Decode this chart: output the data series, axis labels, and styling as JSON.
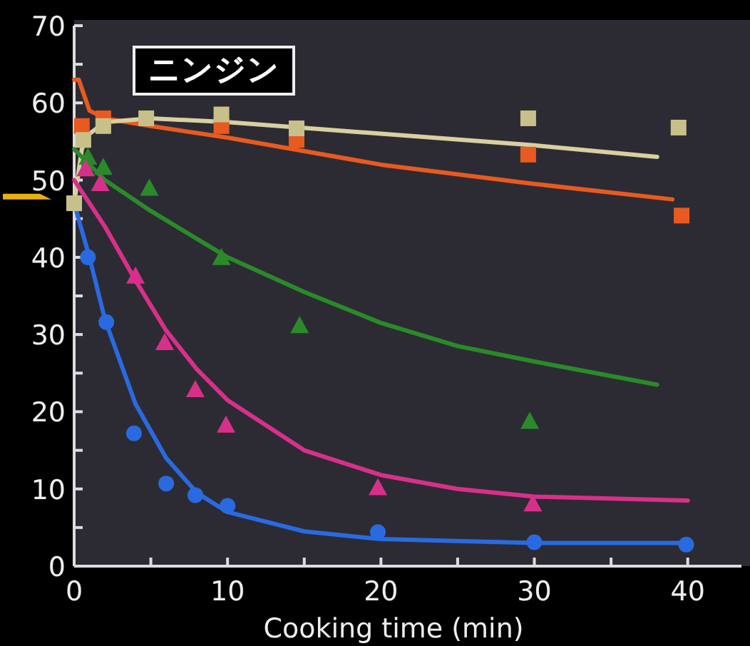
{
  "chart_data": {
    "type": "scatter",
    "title": "ニンジン",
    "xlabel": "Cooking time (min)",
    "xlim": [
      0,
      43.5
    ],
    "ylim": [
      0,
      70
    ],
    "xticks": [
      0,
      {
        "value": 5,
        "label": null
      },
      10,
      {
        "value": 15,
        "label": null
      },
      20,
      {
        "value": 25,
        "label": null
      },
      30,
      {
        "value": 35,
        "label": null
      },
      40
    ],
    "yticks": [
      0,
      {
        "value": 5,
        "label": null
      },
      10,
      {
        "value": 15,
        "label": null
      },
      20,
      {
        "value": 25,
        "label": null
      },
      30,
      {
        "value": 35,
        "label": null
      },
      40,
      {
        "value": 45,
        "label": null
      },
      50,
      {
        "value": 55,
        "label": null
      },
      60,
      {
        "value": 65,
        "label": null
      },
      70
    ],
    "grid": false,
    "series": [
      {
        "type": "line",
        "color": "#e85a20",
        "marker": "none",
        "x": [
          0,
          0.3,
          1,
          2,
          5,
          10,
          20,
          30,
          39
        ],
        "values": [
          63,
          63,
          59,
          58,
          57,
          55.5,
          52,
          49.5,
          47.5
        ]
      },
      {
        "type": "line",
        "color": "#d8d0a0",
        "marker": "none",
        "x": [
          0,
          0.5,
          1,
          2,
          5,
          10,
          20,
          30,
          38
        ],
        "values": [
          47,
          54,
          56,
          57.5,
          58,
          57.5,
          56,
          54.5,
          53
        ]
      },
      {
        "type": "line",
        "color": "#2a8a2a",
        "marker": "none",
        "x": [
          0,
          2,
          5,
          10,
          15,
          20,
          25,
          30,
          38
        ],
        "values": [
          54,
          50,
          46,
          40,
          35.5,
          31.5,
          28.5,
          26.5,
          23.5
        ]
      },
      {
        "type": "line",
        "color": "#d8308a",
        "marker": "none",
        "x": [
          0,
          2,
          4,
          6,
          8,
          10,
          15,
          20,
          25,
          30,
          40
        ],
        "values": [
          50,
          44,
          37,
          30.5,
          25.5,
          21.5,
          15,
          11.8,
          10,
          9,
          8.5
        ]
      },
      {
        "type": "line",
        "color": "#2a6ae0",
        "marker": "none",
        "x": [
          0,
          1,
          2,
          4,
          6,
          8,
          10,
          15,
          20,
          30,
          40
        ],
        "values": [
          47,
          40,
          32,
          21,
          14,
          9.5,
          7,
          4.5,
          3.5,
          3,
          3
        ]
      },
      {
        "color": "#e85a20",
        "marker": "square",
        "x": [
          0.5,
          1.9,
          9.6,
          14.5,
          29.6,
          39.6
        ],
        "values": [
          57,
          58,
          57,
          55.2,
          53.3,
          45.4
        ]
      },
      {
        "color": "#c8c08a",
        "marker": "square",
        "x": [
          0,
          0.6,
          1.9,
          4.7,
          9.6,
          14.5,
          29.6,
          39.4
        ],
        "values": [
          47,
          55.2,
          57,
          58,
          58.5,
          56.7,
          58,
          56.8
        ]
      },
      {
        "color": "#2a8a2a",
        "marker": "triangle",
        "x": [
          0.9,
          1.9,
          4.9,
          9.6,
          14.7,
          29.7
        ],
        "values": [
          53,
          51.7,
          49,
          40,
          31.2,
          18.8
        ]
      },
      {
        "color": "#d8308a",
        "marker": "triangle",
        "x": [
          0.75,
          1.7,
          4,
          5.9,
          7.9,
          9.9,
          19.8,
          29.9
        ],
        "values": [
          51.5,
          49.6,
          37.6,
          29,
          22.9,
          18.3,
          10.2,
          8.1
        ]
      },
      {
        "color": "#2a6ae0",
        "marker": "circle",
        "x": [
          0.9,
          2.1,
          3.9,
          6,
          7.9,
          10,
          19.8,
          30,
          39.9
        ],
        "values": [
          40,
          31.6,
          17.2,
          10.7,
          9.2,
          7.8,
          4.4,
          3.1,
          2.8
        ]
      }
    ]
  }
}
